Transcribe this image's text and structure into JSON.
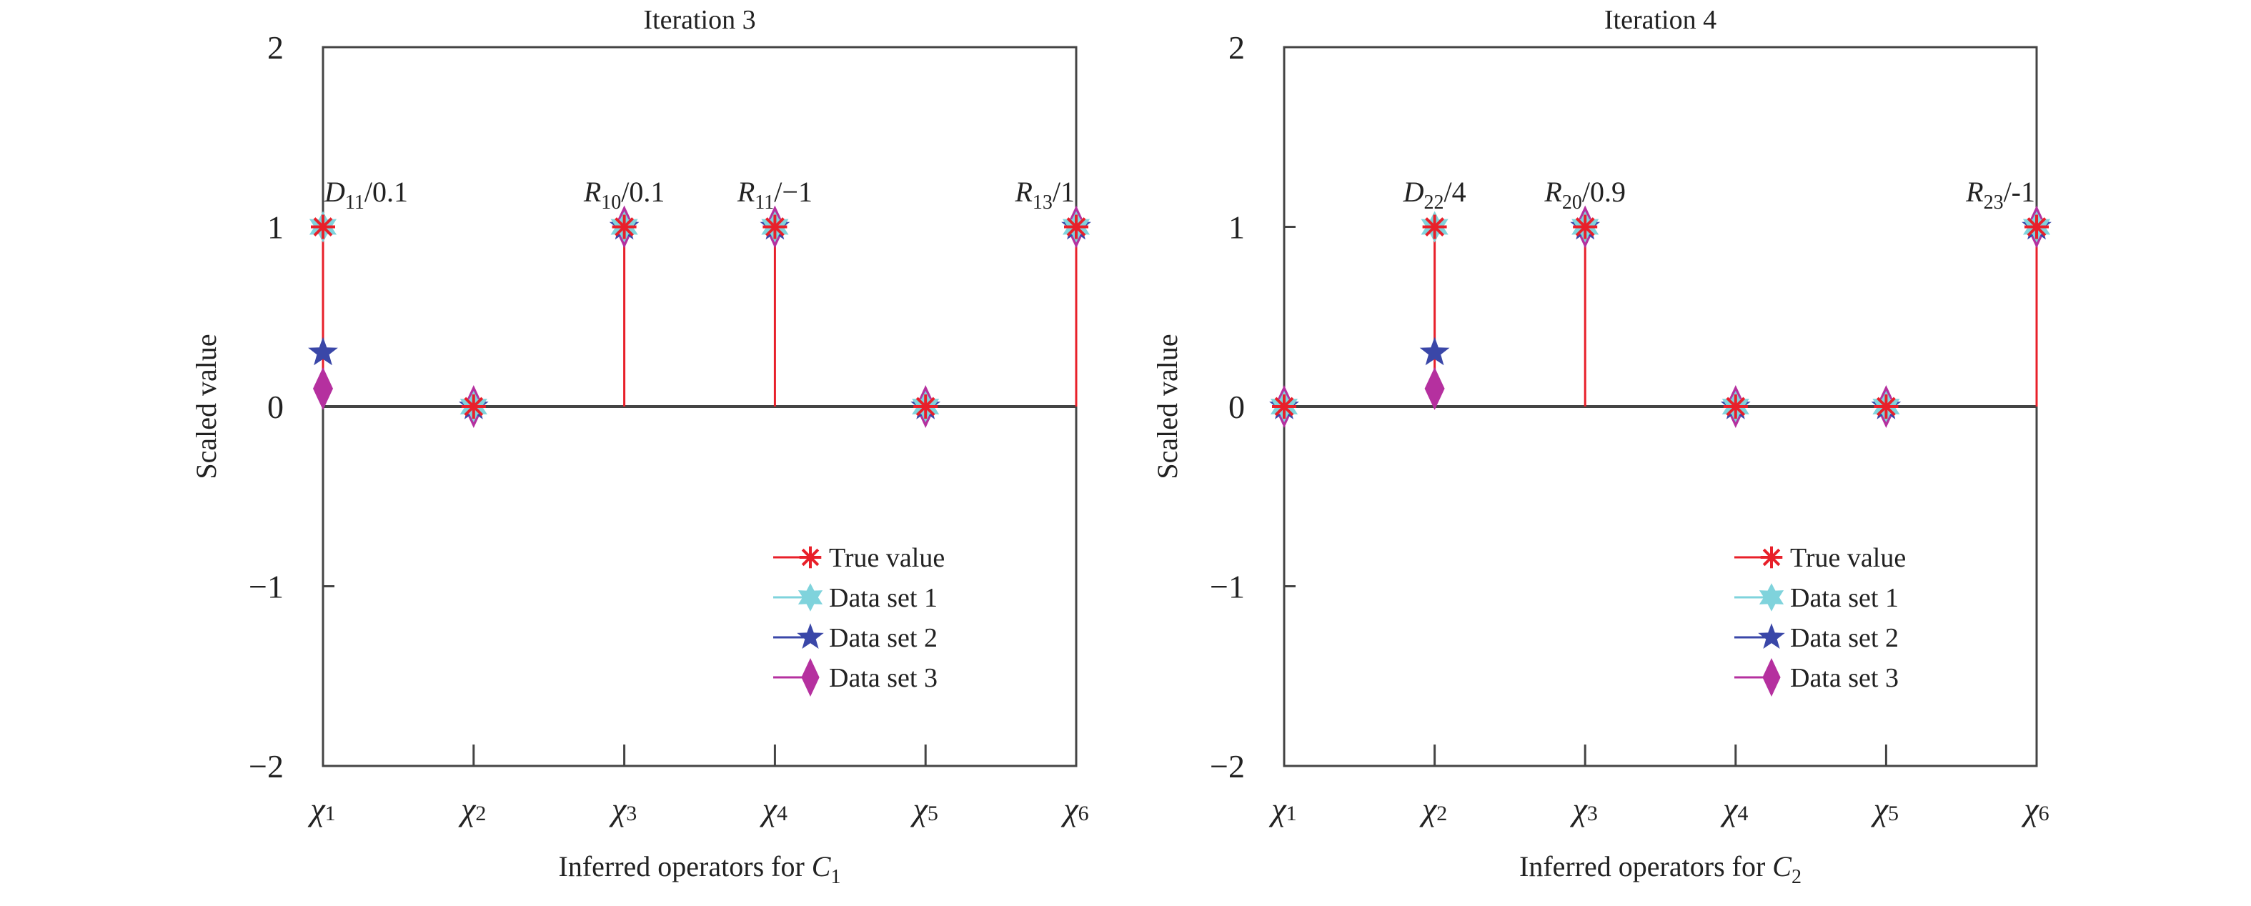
{
  "chart_data": [
    {
      "type": "stem",
      "title": "Iteration 3",
      "ylabel": "Scaled value",
      "xlabel": {
        "text": "Inferred operators for ",
        "var": "C",
        "sub": "1"
      },
      "categories": [
        "χ1",
        "χ2",
        "χ3",
        "χ4",
        "χ5",
        "χ6"
      ],
      "ylim": [
        -2,
        2
      ],
      "yticks": [
        "−2",
        "−1",
        "0",
        "1",
        "2"
      ],
      "legend_position": "bottom-right",
      "series": [
        {
          "name": "True value",
          "marker": "asterisk",
          "color": "#e8202a",
          "values": [
            1,
            0,
            1,
            1,
            0,
            1
          ]
        },
        {
          "name": "Data set 1",
          "marker": "hexagram",
          "color": "#7fd3dc",
          "values": [
            1,
            0,
            1,
            1,
            0,
            1
          ]
        },
        {
          "name": "Data set 2",
          "marker": "pentagram",
          "color": "#3a47a8",
          "values": [
            0.3,
            0,
            1,
            1,
            0,
            1
          ]
        },
        {
          "name": "Data set 3",
          "marker": "diamond",
          "color": "#b5309f",
          "values": [
            0.1,
            0,
            1,
            1,
            0,
            1
          ]
        }
      ],
      "annotations": [
        {
          "x": "χ1",
          "var": "D",
          "sub": "11",
          "value": "/0.1"
        },
        {
          "x": "χ3",
          "var": "R",
          "sub": "10",
          "value": "/0.1"
        },
        {
          "x": "χ4",
          "var": "R",
          "sub": "11",
          "value": "/−1"
        },
        {
          "x": "χ6",
          "var": "R",
          "sub": "13",
          "value": "/1"
        }
      ]
    },
    {
      "type": "stem",
      "title": "Iteration 4",
      "ylabel": "Scaled value",
      "xlabel": {
        "text": "Inferred operators for ",
        "var": "C",
        "sub": "2"
      },
      "categories": [
        "χ1",
        "χ2",
        "χ3",
        "χ4",
        "χ5",
        "χ6"
      ],
      "ylim": [
        -2,
        2
      ],
      "yticks": [
        "−2",
        "−1",
        "0",
        "1",
        "2"
      ],
      "legend_position": "bottom-right",
      "series": [
        {
          "name": "True value",
          "marker": "asterisk",
          "color": "#e8202a",
          "values": [
            0,
            1,
            1,
            0,
            0,
            1
          ]
        },
        {
          "name": "Data set 1",
          "marker": "hexagram",
          "color": "#7fd3dc",
          "values": [
            0,
            1,
            1,
            0,
            0,
            1
          ]
        },
        {
          "name": "Data set 2",
          "marker": "pentagram",
          "color": "#3a47a8",
          "values": [
            0,
            0.3,
            1,
            0,
            0,
            1
          ]
        },
        {
          "name": "Data set 3",
          "marker": "diamond",
          "color": "#b5309f",
          "values": [
            0,
            0.1,
            1,
            0,
            0,
            1
          ]
        }
      ],
      "annotations": [
        {
          "x": "χ2",
          "var": "D",
          "sub": "22",
          "value": "/4"
        },
        {
          "x": "χ3",
          "var": "R",
          "sub": "20",
          "value": "/0.9"
        },
        {
          "x": "χ6",
          "var": "R",
          "sub": "23",
          "value": "/-1"
        }
      ]
    }
  ]
}
